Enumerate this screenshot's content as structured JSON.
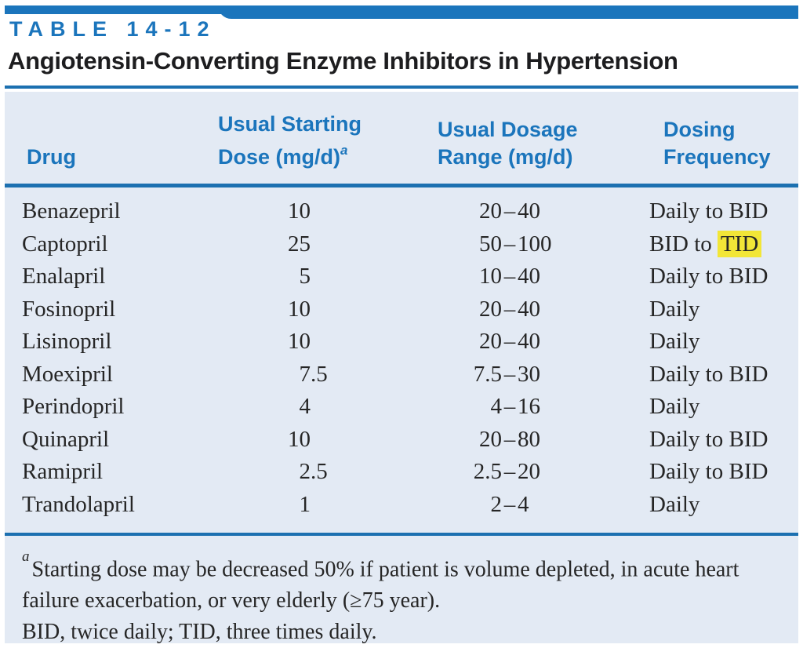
{
  "header": {
    "table_label": "TABLE 14-12",
    "title": "Angiotensin-Converting Enzyme Inhibitors in Hypertension"
  },
  "table": {
    "range_separator": "–",
    "columns": {
      "col1": "Drug",
      "col2_line1": "Usual Starting",
      "col2_line2": "Dose (mg/d)",
      "col2_sup": "a",
      "col3_line1": "Usual Dosage",
      "col3_line2": "Range (mg/d)",
      "col4_line1": "Dosing",
      "col4_line2": "Frequency"
    },
    "rows": [
      {
        "drug": "Benazepril",
        "dose_int": "10",
        "dose_frac": "",
        "range_lo": "20",
        "range_hi": "40",
        "freq": "Daily to BID",
        "freq_highlight": ""
      },
      {
        "drug": "Captopril",
        "dose_int": "25",
        "dose_frac": "",
        "range_lo": "50",
        "range_hi": "100",
        "freq": "BID to ",
        "freq_highlight": "TID"
      },
      {
        "drug": "Enalapril",
        "dose_int": "5",
        "dose_frac": "",
        "range_lo": "10",
        "range_hi": "40",
        "freq": "Daily to BID",
        "freq_highlight": ""
      },
      {
        "drug": "Fosinopril",
        "dose_int": "10",
        "dose_frac": "",
        "range_lo": "20",
        "range_hi": "40",
        "freq": "Daily",
        "freq_highlight": ""
      },
      {
        "drug": "Lisinopril",
        "dose_int": "10",
        "dose_frac": "",
        "range_lo": "20",
        "range_hi": "40",
        "freq": "Daily",
        "freq_highlight": ""
      },
      {
        "drug": "Moexipril",
        "dose_int": "7",
        "dose_frac": ".5",
        "range_lo": "7.5",
        "range_hi": "30",
        "freq": "Daily to BID",
        "freq_highlight": ""
      },
      {
        "drug": "Perindopril",
        "dose_int": "4",
        "dose_frac": "",
        "range_lo": "4",
        "range_hi": "16",
        "freq": "Daily",
        "freq_highlight": ""
      },
      {
        "drug": "Quinapril",
        "dose_int": "10",
        "dose_frac": "",
        "range_lo": "20",
        "range_hi": "80",
        "freq": "Daily to BID",
        "freq_highlight": ""
      },
      {
        "drug": "Ramipril",
        "dose_int": "2",
        "dose_frac": ".5",
        "range_lo": "2.5",
        "range_hi": "20",
        "freq": "Daily to BID",
        "freq_highlight": ""
      },
      {
        "drug": "Trandolapril",
        "dose_int": "1",
        "dose_frac": "",
        "range_lo": "2",
        "range_hi": "4",
        "freq": "Daily",
        "freq_highlight": ""
      }
    ]
  },
  "footnotes": {
    "note_marker": "a",
    "note_text": "Starting dose may be decreased 50% if patient is volume depleted, in acute heart failure exacerbation, or very elderly (≥75 year).",
    "abbreviations": "BID, twice daily; TID, three times daily."
  },
  "colors": {
    "accent_blue": "#1B75BC",
    "rule_blue": "#1C70B0",
    "panel_background": "#E3EAF4",
    "highlight_yellow": "#F2E637",
    "text_ink": "#262626"
  }
}
